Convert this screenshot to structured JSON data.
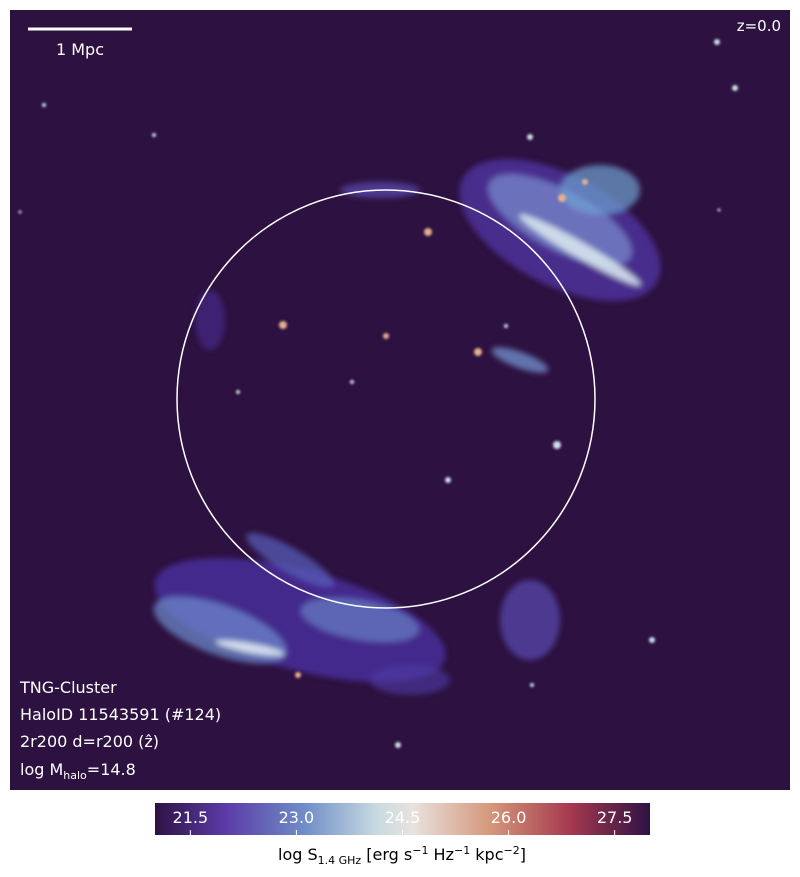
{
  "scale_bar": "1 Mpc",
  "redshift": "z=0.0",
  "info": {
    "simulation": "TNG-Cluster",
    "halo": "HaloID 11543591 (#124)",
    "projection": "2r200 d=r200 (ẑ)",
    "mass": {
      "prefix": "log M",
      "sub": "halo",
      "suffix": "=14.8"
    }
  },
  "colorbar": {
    "range": [
      21.0,
      28.0
    ],
    "ticks": [
      21.5,
      {
        "value": 23.0,
        "label": "23.0"
      },
      24.5,
      {
        "value": 26.0,
        "label": "26.0"
      },
      27.5
    ],
    "label": {
      "a": "log S",
      "sub": "1.4 GHz",
      "b": " [erg s",
      "sup1": "−1",
      "c": " Hz",
      "sup2": "−1",
      "d": " kpc",
      "sup3": "−2",
      "e": "]"
    }
  }
}
